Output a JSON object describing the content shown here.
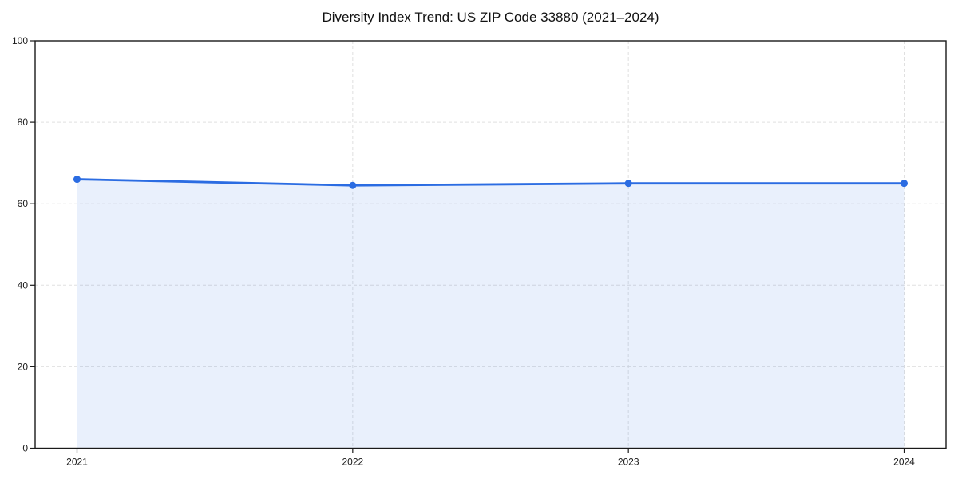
{
  "chart_data": {
    "type": "area",
    "title": "Diversity Index Trend: US ZIP Code 33880 (2021–2024)",
    "x": [
      "2021",
      "2022",
      "2023",
      "2024"
    ],
    "series": [
      {
        "name": "Diversity Index",
        "values": [
          66,
          64.5,
          65,
          65
        ]
      }
    ],
    "xlabel": "",
    "ylabel": "",
    "ylim": [
      0,
      100
    ],
    "yticks": [
      0,
      20,
      40,
      60,
      80,
      100
    ],
    "grid": true,
    "grid_style": "dashed",
    "legend": "none",
    "colors": {
      "line": "#2b6ce2",
      "marker": "#2b6ce2",
      "fill": "#2b6ce2",
      "fill_opacity": 0.1,
      "grid": "#e0e0e0",
      "axis": "#1a1a1a",
      "text": "#1a1a1a",
      "background": "#ffffff"
    }
  }
}
